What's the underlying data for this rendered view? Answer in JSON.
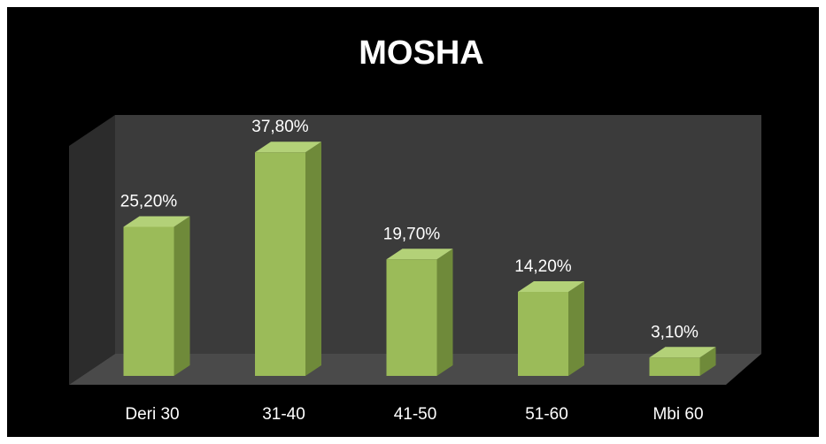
{
  "chart_data": {
    "type": "bar3d",
    "title": "MOSHA",
    "categories": [
      "Deri 30",
      "31-40",
      "41-50",
      "51-60",
      "Mbi 60"
    ],
    "values": [
      25.2,
      37.8,
      19.7,
      14.2,
      3.1
    ],
    "value_labels": [
      "25,20%",
      "37,80%",
      "19,70%",
      "14,20%",
      "3,10%"
    ],
    "color": "#9bbb59",
    "ylim": [
      0,
      40
    ]
  }
}
